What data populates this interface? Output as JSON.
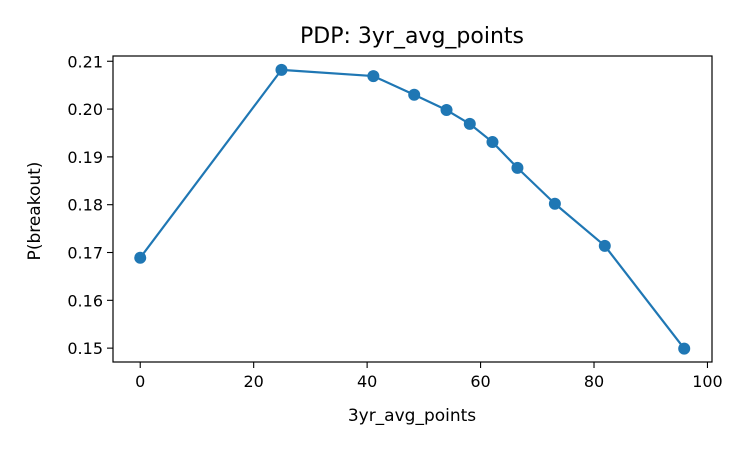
{
  "chart_data": {
    "type": "line",
    "title": "PDP: 3yr_avg_points",
    "xlabel": "3yr_avg_points",
    "ylabel": "P(breakout)",
    "xlim": [
      -4.8,
      100.8
    ],
    "ylim": [
      0.1471,
      0.2111
    ],
    "xticks": [
      0,
      20,
      40,
      60,
      80,
      100
    ],
    "xtick_labels": [
      "0",
      "20",
      "40",
      "60",
      "80",
      "100"
    ],
    "yticks": [
      0.15,
      0.16,
      0.17,
      0.18,
      0.19,
      0.2,
      0.21
    ],
    "ytick_labels": [
      "0.15",
      "0.16",
      "0.17",
      "0.18",
      "0.19",
      "0.20",
      "0.21"
    ],
    "grid": false,
    "series": [
      {
        "color": "#1f77b4",
        "marker": "circle",
        "x": [
          0,
          24.9,
          41.1,
          48.3,
          54.0,
          58.1,
          62.1,
          66.5,
          73.1,
          81.9,
          95.9
        ],
        "y": [
          0.1689,
          0.2082,
          0.2069,
          0.203,
          0.1998,
          0.1969,
          0.1931,
          0.1877,
          0.1802,
          0.1714,
          0.1499
        ]
      }
    ]
  }
}
